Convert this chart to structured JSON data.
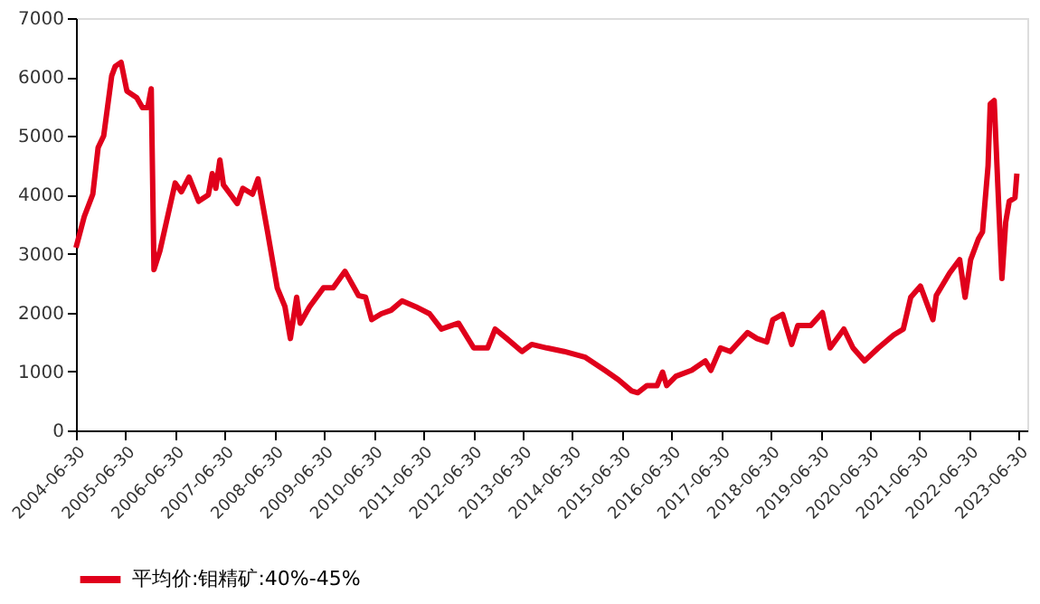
{
  "chart_data": {
    "type": "line",
    "legend": "bottom",
    "grid": false,
    "marker": "none",
    "line_style": "solid",
    "xlim": [
      "2004-06-30",
      "2023-08-31"
    ],
    "xticks": [
      "2004-06-30",
      "2005-06-30",
      "2006-06-30",
      "2007-06-30",
      "2008-06-30",
      "2009-06-30",
      "2010-06-30",
      "2011-06-30",
      "2012-06-30",
      "2013-06-30",
      "2014-06-30",
      "2015-06-30",
      "2016-06-30",
      "2017-06-30",
      "2018-06-30",
      "2019-06-30",
      "2020-06-30",
      "2021-06-30",
      "2022-06-30",
      "2023-06-30"
    ],
    "ylim": [
      0,
      7000
    ],
    "yticks": [
      0,
      1000,
      2000,
      3000,
      4000,
      5000,
      6000,
      7000
    ],
    "x": [
      "2004-06-30",
      "2004-08-30",
      "2004-11-01",
      "2004-12-10",
      "2005-01-20",
      "2005-03-20",
      "2005-04-15",
      "2005-05-28",
      "2005-07-10",
      "2005-09-20",
      "2005-11-01",
      "2005-12-10",
      "2006-01-05",
      "2006-01-25",
      "2006-03-10",
      "2006-06-30",
      "2006-08-15",
      "2006-10-10",
      "2006-12-20",
      "2007-03-01",
      "2007-03-30",
      "2007-04-25",
      "2007-05-25",
      "2007-06-20",
      "2007-09-30",
      "2007-11-10",
      "2008-01-20",
      "2008-03-01",
      "2008-05-10",
      "2008-07-20",
      "2008-09-15",
      "2008-10-25",
      "2008-12-10",
      "2009-01-05",
      "2009-03-15",
      "2009-06-25",
      "2009-09-05",
      "2009-12-01",
      "2010-03-10",
      "2010-05-01",
      "2010-06-15",
      "2010-08-25",
      "2010-11-05",
      "2011-01-25",
      "2011-05-05",
      "2011-08-15",
      "2011-11-10",
      "2012-03-15",
      "2012-07-05",
      "2012-10-15",
      "2012-12-10",
      "2013-03-05",
      "2013-06-25",
      "2013-09-05",
      "2013-12-25",
      "2014-05-01",
      "2014-10-05",
      "2015-02-25",
      "2015-06-05",
      "2015-09-10",
      "2015-10-25",
      "2016-01-01",
      "2016-03-15",
      "2016-04-25",
      "2016-05-25",
      "2016-08-01",
      "2016-11-25",
      "2017-03-05",
      "2017-04-15",
      "2017-06-25",
      "2017-09-05",
      "2018-01-10",
      "2018-03-20",
      "2018-06-01",
      "2018-07-15",
      "2018-09-25",
      "2018-12-01",
      "2019-01-15",
      "2019-04-20",
      "2019-07-15",
      "2019-09-10",
      "2019-12-20",
      "2020-02-25",
      "2020-05-20",
      "2020-08-30",
      "2020-12-20",
      "2021-03-01",
      "2021-04-25",
      "2021-07-05",
      "2021-10-05",
      "2021-10-30",
      "2022-02-05",
      "2022-04-20",
      "2022-05-30",
      "2022-07-10",
      "2022-09-05",
      "2022-10-05",
      "2022-11-15",
      "2022-12-01",
      "2022-12-30",
      "2023-01-25",
      "2023-02-25",
      "2023-03-25",
      "2023-04-20",
      "2023-06-01",
      "2023-06-15"
    ],
    "series": [
      {
        "name": "平均价:钼精矿:40%-45%",
        "color": "#e0001b",
        "values": [
          3100,
          3630,
          4010,
          4800,
          5000,
          6020,
          6180,
          6250,
          5760,
          5650,
          5480,
          5480,
          5800,
          2730,
          3050,
          4200,
          4050,
          4300,
          3890,
          4000,
          4360,
          4110,
          4590,
          4170,
          3850,
          4110,
          4010,
          4270,
          3370,
          2420,
          2100,
          1560,
          2260,
          1820,
          2100,
          2420,
          2420,
          2700,
          2290,
          2260,
          1880,
          1980,
          2040,
          2200,
          2100,
          1980,
          1720,
          1820,
          1400,
          1400,
          1720,
          1560,
          1340,
          1460,
          1400,
          1340,
          1240,
          1020,
          860,
          670,
          640,
          760,
          760,
          990,
          760,
          920,
          1020,
          1180,
          1020,
          1400,
          1340,
          1660,
          1560,
          1500,
          1880,
          1970,
          1460,
          1780,
          1780,
          2000,
          1400,
          1720,
          1400,
          1180,
          1400,
          1620,
          1720,
          2260,
          2450,
          1880,
          2290,
          2670,
          2900,
          2260,
          2900,
          3250,
          3370,
          4490,
          5540,
          5600,
          4200,
          2580,
          3540,
          3890,
          3950,
          4360
        ]
      }
    ]
  }
}
